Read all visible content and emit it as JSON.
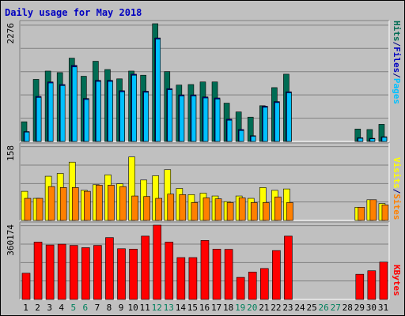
{
  "title": "Daily usage for May 2018",
  "colors": {
    "hits": "#006c54",
    "files": "#00b0ff",
    "pages": "#00c0ff",
    "visits": "#ffff00",
    "sites": "#ff8000",
    "kbytes": "#ff0000",
    "weekday_label": "#000000",
    "weekend_label": "#00805c",
    "title": "#0000c0",
    "plot_bg": "#c0c0c0"
  },
  "chart_data": [
    {
      "type": "bar",
      "panel": "hits-files-pages",
      "ylabel_parts": [
        "Pages",
        "/",
        "Files",
        "/",
        "Hits"
      ],
      "ymax_label": "2276",
      "ylim": [
        0,
        2276
      ],
      "categories": [
        "1",
        "2",
        "3",
        "4",
        "5",
        "6",
        "7",
        "8",
        "9",
        "10",
        "11",
        "12",
        "13",
        "14",
        "15",
        "16",
        "17",
        "18",
        "19",
        "20",
        "21",
        "22",
        "23",
        "24",
        "25",
        "26",
        "27",
        "28",
        "29",
        "30",
        "31"
      ],
      "weekend_days": [
        5,
        6,
        12,
        13,
        19,
        20,
        26,
        27
      ],
      "series": [
        {
          "name": "Hits",
          "values": [
            380,
            1200,
            1360,
            1330,
            1610,
            1260,
            1550,
            1390,
            1210,
            1360,
            1280,
            2276,
            1350,
            1090,
            1100,
            1150,
            1150,
            740,
            570,
            470,
            690,
            1040,
            1300,
            0,
            0,
            0,
            0,
            0,
            240,
            230,
            330
          ]
        },
        {
          "name": "Files",
          "values": [
            190,
            870,
            1150,
            1100,
            1470,
            830,
            1180,
            1180,
            980,
            1300,
            970,
            2000,
            1020,
            900,
            900,
            860,
            840,
            430,
            230,
            110,
            680,
            770,
            960,
            0,
            0,
            0,
            0,
            0,
            70,
            60,
            90
          ]
        },
        {
          "name": "Pages",
          "values": [
            180,
            850,
            1130,
            1080,
            1440,
            810,
            1160,
            1160,
            960,
            1280,
            950,
            1980,
            1000,
            880,
            880,
            840,
            820,
            410,
            210,
            100,
            660,
            750,
            940,
            0,
            0,
            0,
            0,
            0,
            60,
            50,
            80
          ]
        }
      ]
    },
    {
      "type": "bar",
      "panel": "visits-sites",
      "ylabel_parts": [
        "Sites",
        "/",
        "Visits"
      ],
      "ymax_label": "158",
      "ylim": [
        0,
        158
      ],
      "categories": [
        "1",
        "2",
        "3",
        "4",
        "5",
        "6",
        "7",
        "8",
        "9",
        "10",
        "11",
        "12",
        "13",
        "14",
        "15",
        "16",
        "17",
        "18",
        "19",
        "20",
        "21",
        "22",
        "23",
        "24",
        "25",
        "26",
        "27",
        "28",
        "29",
        "30",
        "31"
      ],
      "series": [
        {
          "name": "Visits",
          "values": [
            62,
            47,
            94,
            100,
            124,
            64,
            76,
            97,
            78,
            135,
            86,
            95,
            108,
            68,
            55,
            58,
            52,
            40,
            52,
            47,
            70,
            64,
            67,
            0,
            0,
            0,
            0,
            0,
            28,
            44,
            36
          ]
        },
        {
          "name": "Sites",
          "values": [
            47,
            47,
            72,
            70,
            70,
            62,
            75,
            75,
            72,
            52,
            51,
            47,
            56,
            55,
            38,
            48,
            46,
            38,
            48,
            38,
            38,
            50,
            38,
            0,
            0,
            0,
            0,
            0,
            28,
            44,
            33
          ]
        }
      ]
    },
    {
      "type": "bar",
      "panel": "kbytes",
      "ylabel_parts": [
        "KBytes"
      ],
      "ymax_label": "360174",
      "ylim": [
        0,
        360174
      ],
      "categories": [
        "1",
        "2",
        "3",
        "4",
        "5",
        "6",
        "7",
        "8",
        "9",
        "10",
        "11",
        "12",
        "13",
        "14",
        "15",
        "16",
        "17",
        "18",
        "19",
        "20",
        "21",
        "22",
        "23",
        "24",
        "25",
        "26",
        "27",
        "28",
        "29",
        "30",
        "31"
      ],
      "series": [
        {
          "name": "KBytes",
          "values": [
            127000,
            278000,
            264000,
            268000,
            262000,
            251000,
            262000,
            300000,
            246000,
            244000,
            307000,
            360174,
            278000,
            203000,
            203000,
            286000,
            244000,
            243000,
            107000,
            133000,
            150000,
            237000,
            307000,
            0,
            0,
            0,
            0,
            0,
            122000,
            139000,
            181000
          ]
        }
      ]
    }
  ]
}
